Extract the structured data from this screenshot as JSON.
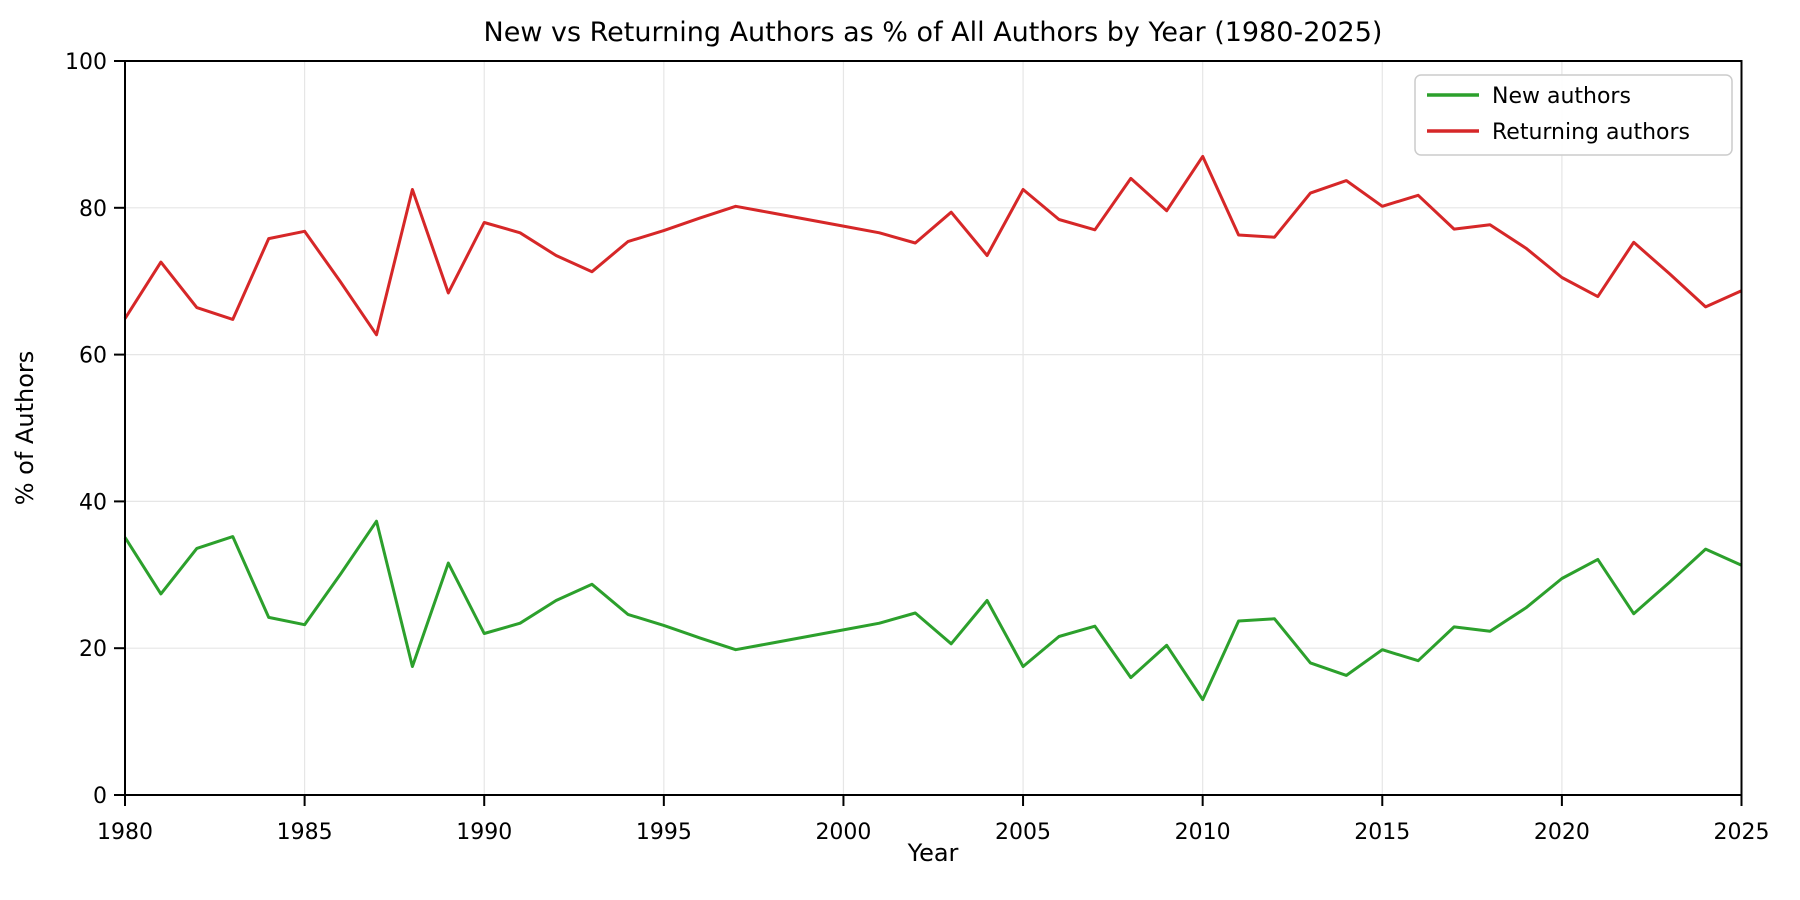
{
  "figure": {
    "title": "New vs Returning Authors as % of All Authors by Year (1980-2025)",
    "xlabel": "Year",
    "ylabel": "% of Authors"
  },
  "legend": {
    "position": "upper right",
    "entries": [
      {
        "label": "New authors",
        "color": "#2ca02c"
      },
      {
        "label": "Returning authors",
        "color": "#d62728"
      }
    ]
  },
  "chart_data": {
    "type": "line",
    "title": "New vs Returning Authors as % of All Authors by Year (1980-2025)",
    "xlabel": "Year",
    "ylabel": "% of Authors",
    "xlim": [
      1980,
      2025
    ],
    "ylim": [
      0,
      100
    ],
    "x_ticks": [
      1980,
      1985,
      1990,
      1995,
      2000,
      2005,
      2010,
      2015,
      2020,
      2025
    ],
    "y_ticks": [
      0,
      20,
      40,
      60,
      80,
      100
    ],
    "grid": true,
    "legend_position": "upper right",
    "x": [
      1980,
      1981,
      1982,
      1983,
      1984,
      1985,
      1986,
      1987,
      1988,
      1989,
      1990,
      1991,
      1992,
      1993,
      1994,
      1995,
      1996,
      1997,
      1998,
      1999,
      2000,
      2001,
      2002,
      2003,
      2004,
      2005,
      2006,
      2007,
      2008,
      2009,
      2010,
      2011,
      2012,
      2013,
      2014,
      2015,
      2016,
      2017,
      2018,
      2019,
      2020,
      2021,
      2022,
      2023,
      2024,
      2025
    ],
    "series": [
      {
        "name": "New authors",
        "color": "#2ca02c",
        "values": [
          35.1,
          27.4,
          33.6,
          35.2,
          24.2,
          23.2,
          30.1,
          37.3,
          17.5,
          31.6,
          22.0,
          23.4,
          26.5,
          28.7,
          24.6,
          23.1,
          21.4,
          19.8,
          20.7,
          21.6,
          22.5,
          23.4,
          24.8,
          20.6,
          26.5,
          17.5,
          21.6,
          23.0,
          16.0,
          20.4,
          13.0,
          23.7,
          24.0,
          18.0,
          16.3,
          19.8,
          18.3,
          22.9,
          22.3,
          25.5,
          29.5,
          32.1,
          24.7,
          29.0,
          33.5,
          31.3
        ]
      },
      {
        "name": "Returning authors",
        "color": "#d62728",
        "values": [
          64.9,
          72.6,
          66.4,
          64.8,
          75.8,
          76.8,
          69.9,
          62.7,
          82.5,
          68.4,
          78.0,
          76.6,
          73.5,
          71.3,
          75.4,
          76.9,
          78.6,
          80.2,
          79.3,
          78.4,
          77.5,
          76.6,
          75.2,
          79.4,
          73.5,
          82.5,
          78.4,
          77.0,
          84.0,
          79.6,
          87.0,
          76.3,
          76.0,
          82.0,
          83.7,
          80.2,
          81.7,
          77.1,
          77.7,
          74.5,
          70.5,
          67.9,
          75.3,
          71.0,
          66.5,
          68.7
        ]
      }
    ]
  }
}
